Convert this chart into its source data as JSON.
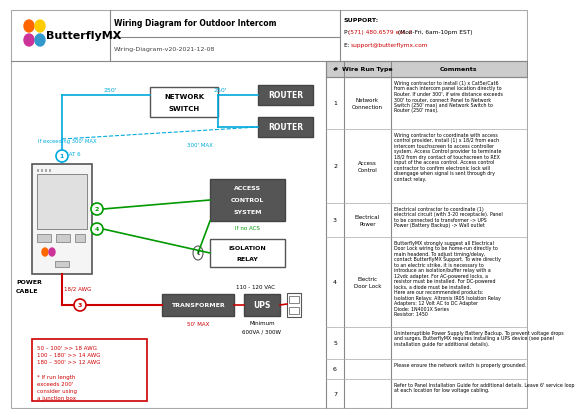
{
  "title": "Wiring Diagram for Outdoor Intercom",
  "subtitle": "Wiring-Diagram-v20-2021-12-08",
  "brand": "ButterflyMX",
  "support_label": "SUPPORT:",
  "support_phone_prefix": "P: ",
  "support_phone_red": "(571) 480.6579 ext. 2",
  "support_phone_suffix": " (Mon-Fri, 6am-10pm EST)",
  "support_email_prefix": "E: ",
  "support_email_red": "support@butterflymx.com",
  "bg_color": "#ffffff",
  "cyan": "#00aadd",
  "green": "#009900",
  "red": "#cc0000",
  "dark_box": "#555555",
  "wire_rows": [
    {
      "num": "1",
      "type": "Network Connection",
      "comment": "Wiring contractor to install (1) x Cat5e/Cat6\nfrom each intercom panel location directly to\nRouter. If under 300', if wire distance exceeds\n300' to router, connect Panel to Network\nSwitch (250' max) and Network Switch to\nRouter (250' max)."
    },
    {
      "num": "2",
      "type": "Access Control",
      "comment": "Wiring contractor to coordinate with access\ncontrol provider, install (1) x 18/2 from each\nintercom touchscreen to access controller\nsystem. Access Control provider to terminate\n18/2 from dry contact of touchscreen to REX\ninput of the access control. Access control\ncontractor to confirm electronic lock will\ndisengage when signal is sent through dry\ncontact relay."
    },
    {
      "num": "3",
      "type": "Electrical Power",
      "comment": "Electrical contractor to coordinate (1)\nelectrical circuit (with 3-20 receptacle). Panel\nto be connected to transformer -> UPS\nPower (Battery Backup) -> Wall outlet"
    },
    {
      "num": "4",
      "type": "Electric Door Lock",
      "comment": "ButterflyMX strongly suggest all Electrical\nDoor Lock wiring to be home-run directly to\nmain headend. To adjust timing/delay,\ncontact ButterflyMX Support. To wire directly\nto an electric strike, it is necessary to\nintroduce an isolation/buffer relay with a\n12vdc adapter. For AC-powered locks, a\nresistor must be installed. For DC-powered\nlocks, a diode must be installed.\nHere are our recommended products:\nIsolation Relays: Altronix IR05 Isolation Relay\nAdapters: 12 Volt AC to DC Adapter\nDiode: 1N4001X Series\nResistor: 1450"
    },
    {
      "num": "5",
      "type": "",
      "comment": "Uninterruptible Power Supply Battery Backup. To prevent voltage drops\nand surges, ButterflyMX requires installing a UPS device (see panel\ninstallation guide for additional details)."
    },
    {
      "num": "6",
      "type": "",
      "comment": "Please ensure the network switch is properly grounded."
    },
    {
      "num": "7",
      "type": "",
      "comment": "Refer to Panel Installation Guide for additional details. Leave 6' service loop\nat each location for low voltage cabling."
    }
  ]
}
